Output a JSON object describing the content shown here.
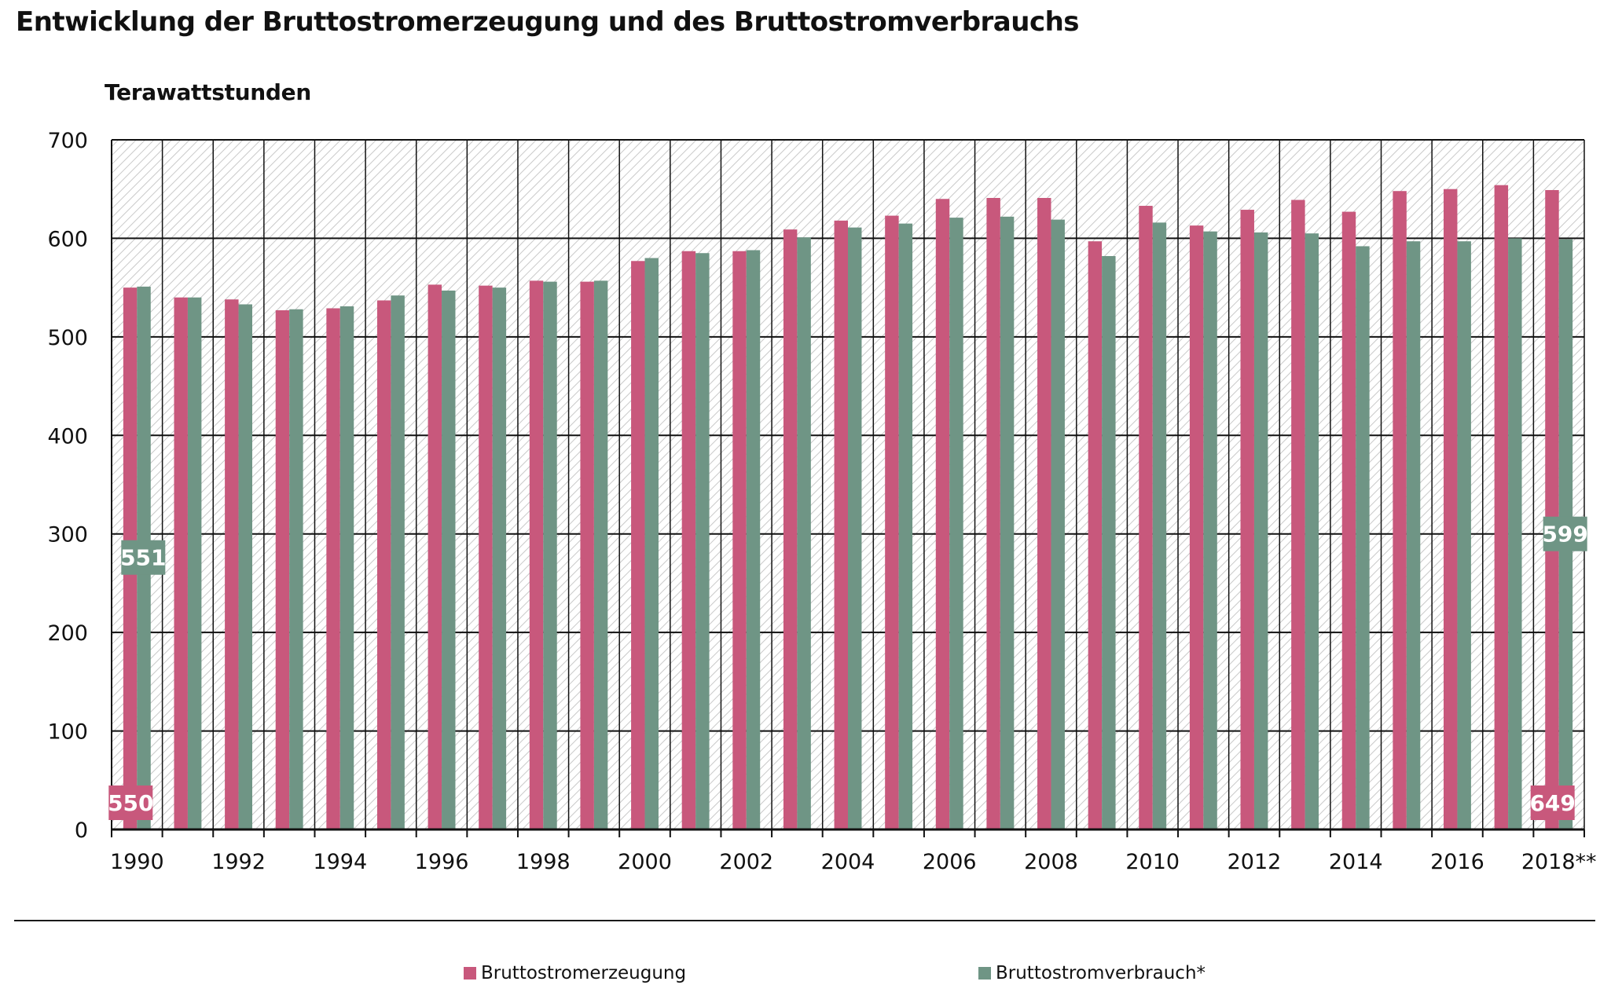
{
  "title": "Entwicklung der Bruttostromerzeugung und des Bruttostromverbrauchs",
  "colors": {
    "erzeugung": "#c8587c",
    "verbrauch": "#6f9585",
    "grid": "#111111",
    "hatch": "#c9c9c9"
  },
  "chart_data": {
    "type": "bar",
    "title": "Entwicklung der Bruttostromerzeugung und des Bruttostromverbrauchs",
    "ylabel": "Terawattstunden",
    "xlabel": "",
    "ylim": [
      0,
      700
    ],
    "yticks": [
      0,
      100,
      200,
      300,
      400,
      500,
      600,
      700
    ],
    "grid": true,
    "legend_position": "bottom",
    "categories": [
      "1990",
      "1991",
      "1992",
      "1993",
      "1994",
      "1995",
      "1996",
      "1997",
      "1998",
      "1999",
      "2000",
      "2001",
      "2002",
      "2003",
      "2004",
      "2005",
      "2006",
      "2007",
      "2008",
      "2009",
      "2010",
      "2011",
      "2012",
      "2013",
      "2014",
      "2015",
      "2016",
      "2017",
      "2018**"
    ],
    "xtick_labels": [
      "1990",
      "",
      "1992",
      "",
      "1994",
      "",
      "1996",
      "",
      "1998",
      "",
      "2000",
      "",
      "2002",
      "",
      "2004",
      "",
      "2006",
      "",
      "2008",
      "",
      "2010",
      "",
      "2012",
      "",
      "2014",
      "",
      "2016",
      "",
      "2018**"
    ],
    "series": [
      {
        "name": "Bruttostromerzeugung",
        "color": "#c8587c",
        "values": [
          550,
          540,
          538,
          527,
          529,
          537,
          553,
          552,
          557,
          556,
          577,
          587,
          587,
          609,
          618,
          623,
          640,
          641,
          641,
          597,
          633,
          613,
          629,
          639,
          627,
          648,
          650,
          654,
          649
        ]
      },
      {
        "name": "Bruttostromverbrauch*",
        "color": "#6f9585",
        "values": [
          551,
          540,
          533,
          528,
          531,
          542,
          547,
          550,
          556,
          557,
          580,
          585,
          588,
          601,
          611,
          615,
          621,
          622,
          619,
          582,
          616,
          607,
          606,
          605,
          592,
          597,
          597,
          600,
          599
        ]
      }
    ],
    "annotations": [
      {
        "label": "550",
        "series": 0,
        "category": "1990"
      },
      {
        "label": "551",
        "series": 1,
        "category": "1990"
      },
      {
        "label": "649",
        "series": 0,
        "category": "2018**"
      },
      {
        "label": "599",
        "series": 1,
        "category": "2018**"
      }
    ]
  }
}
